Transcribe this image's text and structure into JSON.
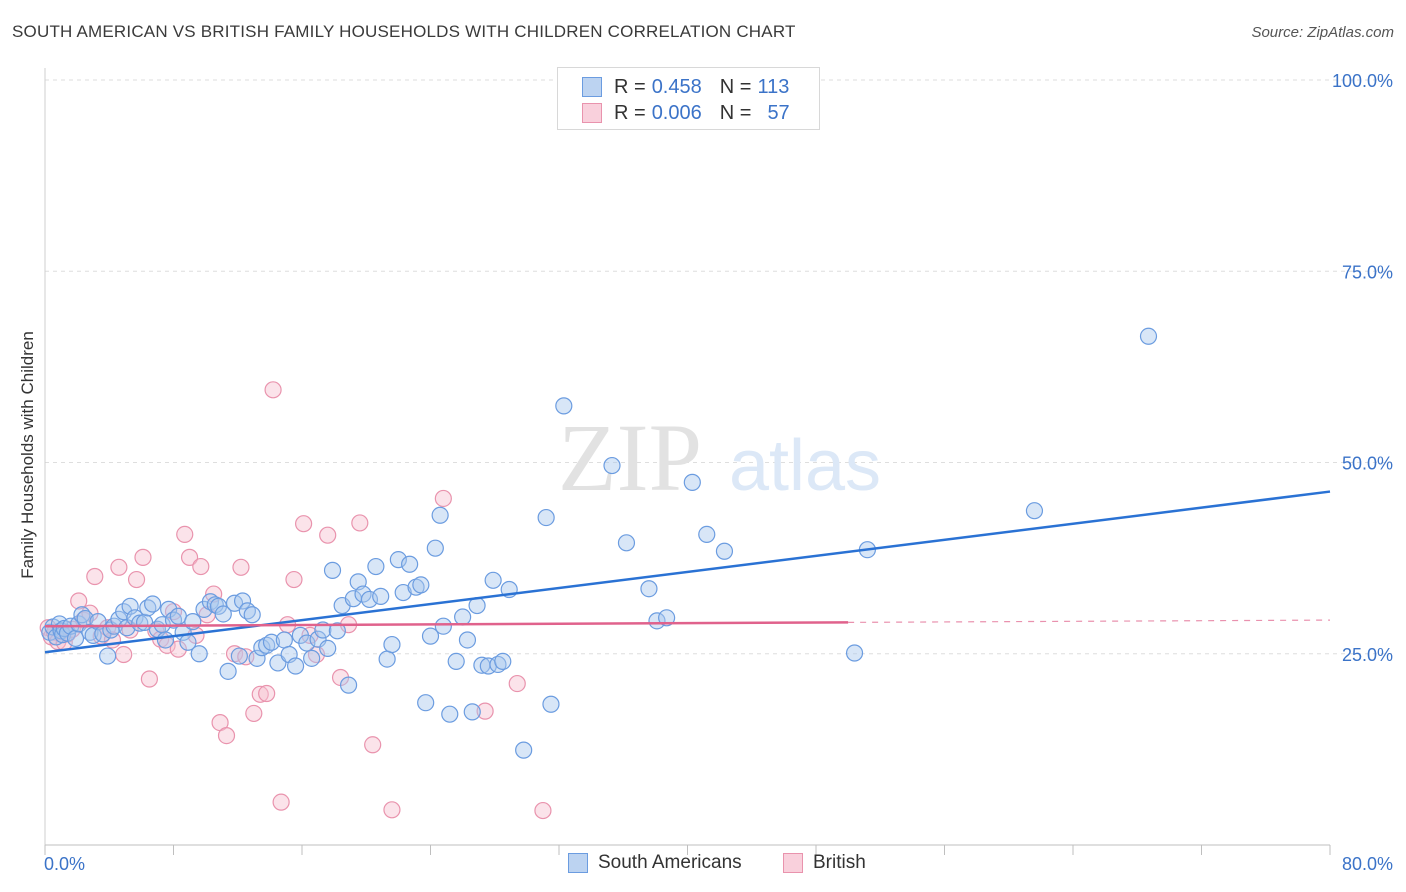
{
  "header": {
    "title": "SOUTH AMERICAN VS BRITISH FAMILY HOUSEHOLDS WITH CHILDREN CORRELATION CHART",
    "source": "Source: ZipAtlas.com"
  },
  "watermark": {
    "zip": "ZIP",
    "atlas": "atlas"
  },
  "legend": {
    "r_label": "R =",
    "n_label": "N =",
    "rows": [
      {
        "r": "0.458",
        "n": "113"
      },
      {
        "r": "0.006",
        "n": "57"
      }
    ]
  },
  "colors": {
    "blue_fill": "#a9c8ee",
    "blue_stroke": "#6b9ce0",
    "blue_line": "#2a72d4",
    "pink_fill": "#f6c1d0",
    "pink_stroke": "#e993ad",
    "pink_line": "#e0628c",
    "axis_text": "#3b73c8"
  },
  "chart_data": {
    "type": "scatter",
    "title": "SOUTH AMERICAN VS BRITISH FAMILY HOUSEHOLDS WITH CHILDREN CORRELATION CHART",
    "xlabel": "",
    "ylabel": "Family Households with Children",
    "xlim": [
      0,
      80
    ],
    "ylim": [
      0,
      100
    ],
    "x_tick_labels": [
      "0.0%",
      "80.0%"
    ],
    "y_ticks": [
      {
        "value": 100,
        "label": "100.0%"
      },
      {
        "value": 75,
        "label": "75.0%"
      },
      {
        "value": 50,
        "label": "50.0%"
      },
      {
        "value": 25,
        "label": "25.0%"
      }
    ],
    "series": [
      {
        "name": "South Americans",
        "color": "#a9c8ee",
        "trend": {
          "x0": 0,
          "y0": 25.2,
          "x1": 80,
          "y1": 46.2,
          "dashed_to": null
        },
        "points": [
          [
            0.3,
            27.8
          ],
          [
            0.5,
            28.5
          ],
          [
            0.7,
            27.2
          ],
          [
            0.9,
            28.9
          ],
          [
            1.0,
            28.0
          ],
          [
            1.1,
            27.5
          ],
          [
            1.2,
            28.3
          ],
          [
            1.4,
            27.7
          ],
          [
            1.6,
            28.6
          ],
          [
            1.9,
            27.0
          ],
          [
            2.1,
            28.9
          ],
          [
            2.3,
            30.1
          ],
          [
            2.5,
            29.6
          ],
          [
            2.8,
            27.8
          ],
          [
            3.0,
            27.4
          ],
          [
            3.3,
            29.2
          ],
          [
            3.6,
            27.6
          ],
          [
            3.9,
            24.7
          ],
          [
            4.1,
            28.1
          ],
          [
            4.3,
            28.6
          ],
          [
            4.6,
            29.5
          ],
          [
            4.9,
            30.5
          ],
          [
            5.1,
            28.4
          ],
          [
            5.3,
            31.2
          ],
          [
            5.6,
            29.7
          ],
          [
            5.9,
            29.0
          ],
          [
            6.2,
            29.1
          ],
          [
            6.4,
            31.0
          ],
          [
            6.7,
            31.5
          ],
          [
            7.0,
            28.2
          ],
          [
            7.3,
            28.8
          ],
          [
            7.5,
            26.8
          ],
          [
            7.7,
            30.8
          ],
          [
            8.0,
            29.4
          ],
          [
            8.3,
            29.9
          ],
          [
            8.6,
            27.8
          ],
          [
            8.9,
            26.5
          ],
          [
            9.2,
            29.2
          ],
          [
            9.6,
            25.0
          ],
          [
            9.9,
            30.8
          ],
          [
            10.3,
            31.8
          ],
          [
            10.6,
            31.4
          ],
          [
            10.8,
            31.2
          ],
          [
            11.1,
            30.2
          ],
          [
            11.4,
            22.7
          ],
          [
            11.8,
            31.6
          ],
          [
            12.1,
            24.7
          ],
          [
            12.3,
            31.9
          ],
          [
            12.6,
            30.6
          ],
          [
            12.9,
            30.1
          ],
          [
            13.2,
            24.4
          ],
          [
            13.5,
            25.8
          ],
          [
            13.8,
            26.1
          ],
          [
            14.1,
            26.5
          ],
          [
            14.5,
            23.8
          ],
          [
            14.9,
            26.8
          ],
          [
            15.2,
            24.9
          ],
          [
            15.6,
            23.4
          ],
          [
            15.9,
            27.4
          ],
          [
            16.3,
            26.4
          ],
          [
            16.6,
            24.4
          ],
          [
            17.0,
            26.9
          ],
          [
            17.3,
            28.1
          ],
          [
            17.6,
            25.7
          ],
          [
            17.9,
            35.9
          ],
          [
            18.2,
            28.0
          ],
          [
            18.5,
            31.3
          ],
          [
            18.9,
            20.9
          ],
          [
            19.2,
            32.2
          ],
          [
            19.5,
            34.4
          ],
          [
            19.8,
            32.8
          ],
          [
            20.2,
            32.1
          ],
          [
            20.6,
            36.4
          ],
          [
            20.9,
            32.5
          ],
          [
            21.3,
            24.3
          ],
          [
            21.6,
            26.2
          ],
          [
            22.0,
            37.3
          ],
          [
            22.3,
            33.0
          ],
          [
            22.7,
            36.7
          ],
          [
            23.1,
            33.7
          ],
          [
            23.4,
            34.0
          ],
          [
            23.7,
            18.6
          ],
          [
            24.0,
            27.3
          ],
          [
            24.3,
            38.8
          ],
          [
            24.6,
            43.1
          ],
          [
            24.8,
            28.6
          ],
          [
            25.2,
            17.1
          ],
          [
            25.6,
            24.0
          ],
          [
            26.0,
            29.8
          ],
          [
            26.3,
            26.8
          ],
          [
            26.6,
            17.4
          ],
          [
            26.9,
            31.3
          ],
          [
            27.2,
            23.5
          ],
          [
            27.6,
            23.4
          ],
          [
            27.9,
            34.6
          ],
          [
            28.2,
            23.6
          ],
          [
            28.5,
            24.0
          ],
          [
            28.9,
            33.4
          ],
          [
            29.8,
            12.4
          ],
          [
            31.2,
            42.8
          ],
          [
            31.5,
            18.4
          ],
          [
            32.3,
            57.4
          ],
          [
            35.3,
            49.6
          ],
          [
            36.2,
            39.5
          ],
          [
            37.6,
            33.5
          ],
          [
            38.1,
            29.3
          ],
          [
            38.7,
            29.7
          ],
          [
            40.3,
            47.4
          ],
          [
            41.2,
            40.6
          ],
          [
            42.3,
            38.4
          ],
          [
            50.4,
            25.1
          ],
          [
            51.2,
            38.6
          ],
          [
            61.6,
            43.7
          ],
          [
            68.7,
            66.5
          ]
        ]
      },
      {
        "name": "British",
        "color": "#f6c1d0",
        "trend": {
          "x0": 0,
          "y0": 28.6,
          "x1": 50,
          "y1": 29.1,
          "dashed_to": {
            "x": 80,
            "y": 29.4
          }
        },
        "points": [
          [
            0.2,
            28.4
          ],
          [
            0.4,
            27.2
          ],
          [
            0.6,
            27.8
          ],
          [
            0.8,
            26.6
          ],
          [
            1.0,
            27.9
          ],
          [
            1.2,
            26.5
          ],
          [
            1.4,
            27.6
          ],
          [
            1.7,
            28.2
          ],
          [
            2.1,
            31.9
          ],
          [
            2.4,
            29.4
          ],
          [
            2.8,
            30.3
          ],
          [
            3.1,
            35.1
          ],
          [
            3.5,
            27.3
          ],
          [
            3.9,
            28.4
          ],
          [
            4.2,
            26.8
          ],
          [
            4.6,
            36.3
          ],
          [
            4.9,
            24.9
          ],
          [
            5.3,
            28.1
          ],
          [
            5.7,
            34.7
          ],
          [
            6.1,
            37.6
          ],
          [
            6.5,
            21.7
          ],
          [
            6.9,
            28.0
          ],
          [
            7.2,
            26.9
          ],
          [
            7.6,
            26.1
          ],
          [
            8.0,
            30.5
          ],
          [
            8.3,
            25.6
          ],
          [
            8.7,
            40.6
          ],
          [
            9.0,
            37.6
          ],
          [
            9.4,
            27.4
          ],
          [
            9.7,
            36.4
          ],
          [
            10.1,
            30.1
          ],
          [
            10.5,
            32.8
          ],
          [
            10.9,
            16.0
          ],
          [
            11.3,
            14.3
          ],
          [
            11.8,
            25.0
          ],
          [
            12.2,
            36.3
          ],
          [
            12.5,
            24.6
          ],
          [
            13.0,
            17.2
          ],
          [
            13.4,
            19.7
          ],
          [
            13.8,
            19.8
          ],
          [
            14.2,
            59.5
          ],
          [
            14.7,
            5.6
          ],
          [
            15.1,
            28.8
          ],
          [
            15.5,
            34.7
          ],
          [
            16.1,
            42.0
          ],
          [
            16.5,
            27.4
          ],
          [
            16.9,
            24.9
          ],
          [
            17.6,
            40.5
          ],
          [
            18.4,
            21.9
          ],
          [
            18.9,
            28.8
          ],
          [
            19.6,
            42.1
          ],
          [
            20.4,
            13.1
          ],
          [
            21.6,
            4.6
          ],
          [
            24.8,
            45.3
          ],
          [
            27.4,
            17.5
          ],
          [
            29.4,
            21.1
          ],
          [
            31.0,
            4.5
          ]
        ]
      }
    ]
  }
}
